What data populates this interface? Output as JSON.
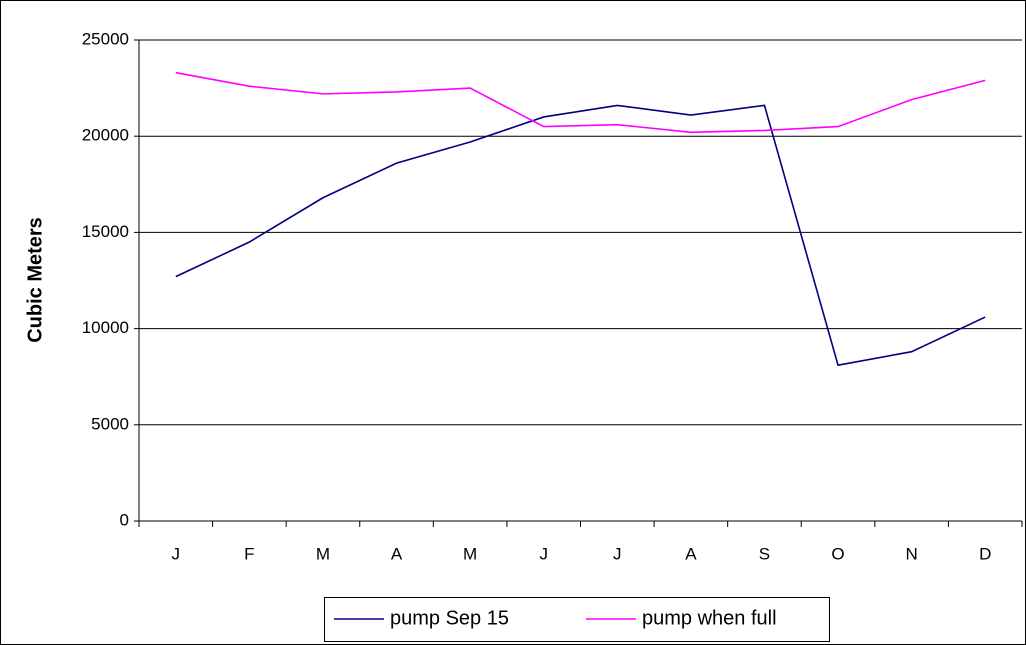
{
  "chart_data": {
    "type": "line",
    "y_label": "Cubic Meters",
    "categories": [
      "J",
      "F",
      "M",
      "A",
      "M",
      "J",
      "J",
      "A",
      "S",
      "O",
      "N",
      "D"
    ],
    "series": [
      {
        "name": "pump Sep 15",
        "color": "#000080",
        "values": [
          12700,
          14500,
          16800,
          18600,
          19700,
          21000,
          21600,
          21100,
          21600,
          8100,
          8800,
          10600
        ]
      },
      {
        "name": "pump when full",
        "color": "#ff00ff",
        "values": [
          23300,
          22600,
          22200,
          22300,
          22500,
          20500,
          20600,
          20200,
          20300,
          20500,
          21900,
          22900
        ]
      }
    ],
    "ylim": [
      0,
      25000
    ],
    "yticks": [
      0,
      5000,
      10000,
      15000,
      20000,
      25000
    ],
    "grid": true,
    "legend": "bottom"
  }
}
